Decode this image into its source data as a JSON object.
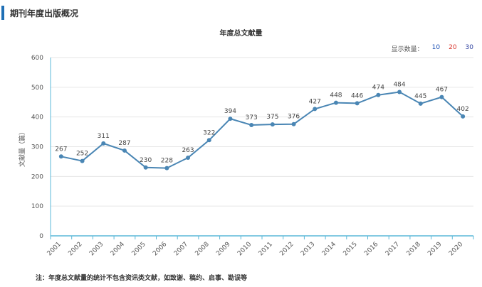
{
  "header": {
    "title": "期刊年度出版概况"
  },
  "count_selector": {
    "label": "显示数量：",
    "options": [
      "10",
      "20",
      "30"
    ]
  },
  "footnote": "注：年度总文献量的统计不包含资讯类文献，如致谢、稿约、启事、勘误等",
  "colors": {
    "line": "#4a86b4",
    "axis": "#5bb8d8",
    "grid": "#e6e6e6",
    "header_bar": "#1f6fb5"
  },
  "chart_data": {
    "type": "line",
    "title": "年度总文献量",
    "xlabel": "",
    "ylabel": "文献量（篇）",
    "ylim": [
      0,
      600
    ],
    "yticks": [
      0,
      100,
      200,
      300,
      400,
      500,
      600
    ],
    "grid": true,
    "categories": [
      "2001",
      "2002",
      "2003",
      "2004",
      "2005",
      "2006",
      "2007",
      "2008",
      "2009",
      "2010",
      "2011",
      "2012",
      "2013",
      "2014",
      "2015",
      "2016",
      "2017",
      "2018",
      "2019",
      "2020"
    ],
    "values": [
      267,
      252,
      311,
      287,
      230,
      228,
      263,
      322,
      394,
      373,
      375,
      376,
      427,
      448,
      446,
      474,
      484,
      445,
      467,
      402
    ]
  }
}
